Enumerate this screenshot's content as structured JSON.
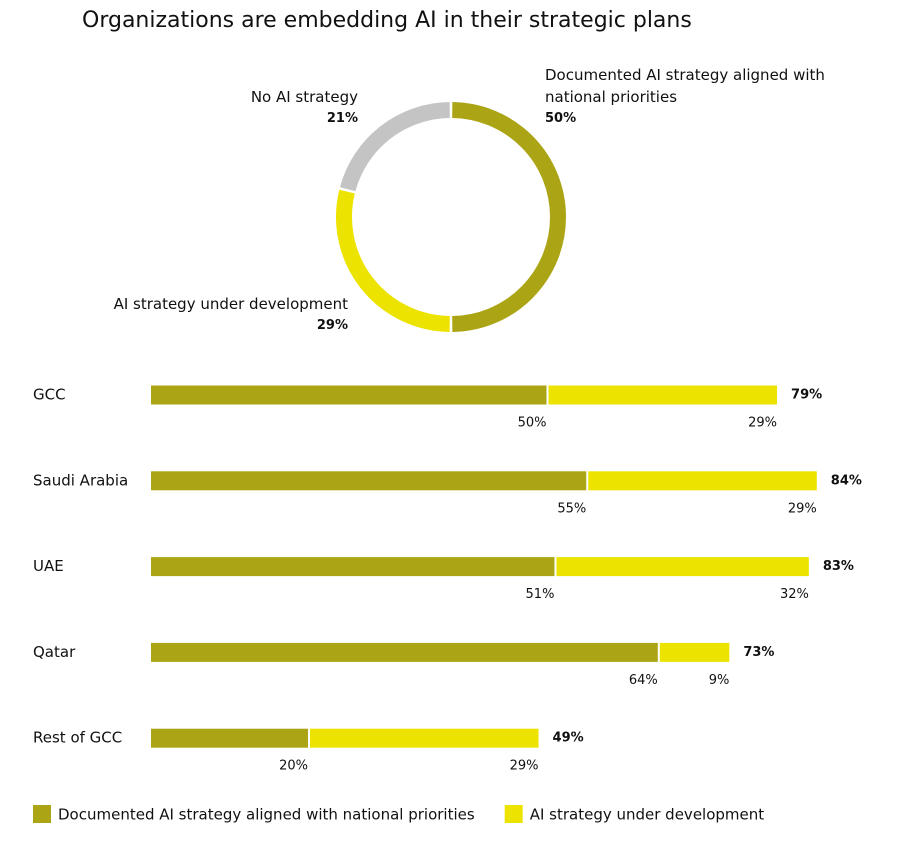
{
  "chart_data": [
    {
      "type": "donut",
      "title": "Organizations are embedding AI in their strategic plans",
      "categories": [
        "Documented AI strategy aligned with national priorities",
        "AI strategy under development",
        "No AI strategy"
      ],
      "values": [
        50,
        29,
        21
      ],
      "value_labels": [
        "50%",
        "29%",
        "21%"
      ],
      "colors": [
        "#aba515",
        "#ede300",
        "#c4c4c4"
      ]
    },
    {
      "type": "stacked_bar",
      "categories": [
        "GCC",
        "Saudi Arabia",
        "UAE",
        "Qatar",
        "Rest of GCC"
      ],
      "series": [
        {
          "name": "Documented AI strategy aligned with national priorities",
          "color": "#aba515",
          "values": [
            50,
            55,
            51,
            64,
            20
          ],
          "value_labels": [
            "50%",
            "55%",
            "51%",
            "64%",
            "20%"
          ]
        },
        {
          "name": "AI strategy under development",
          "color": "#ede300",
          "values": [
            29,
            29,
            32,
            9,
            29
          ],
          "value_labels": [
            "29%",
            "29%",
            "32%",
            "9%",
            "29%"
          ]
        }
      ],
      "totals": [
        79,
        84,
        83,
        73,
        49
      ],
      "total_labels": [
        "79%",
        "84%",
        "83%",
        "73%",
        "49%"
      ]
    }
  ]
}
